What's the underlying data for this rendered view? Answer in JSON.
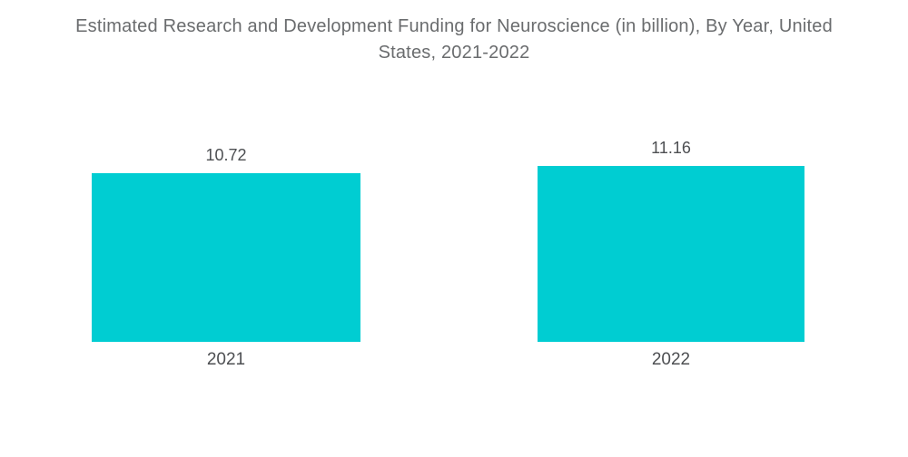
{
  "header": {
    "line1": "Estimated Research and Development Funding for Neuroscience (in billion), By Year, United",
    "line2": "States, 2021-2022"
  },
  "colors": {
    "bar": "#00CDD2",
    "title_text": "#6A6C6E",
    "label_text": "#4D4F52",
    "background": "#FFFFFF"
  },
  "chart_data": {
    "type": "bar",
    "title": "Estimated Research and Development Funding for Neuroscience (in billion), By Year, United States, 2021-2022",
    "categories": [
      "2021",
      "2022"
    ],
    "values": [
      10.72,
      11.16
    ],
    "value_labels": [
      "10.72",
      "11.16"
    ],
    "xlabel": "",
    "ylabel": "",
    "ylim": [
      0,
      11.16
    ],
    "grid": false,
    "legend": false,
    "bar_color": "#00CDD2",
    "layout": "two vertical bars, value labels above bars, category labels below, no axes drawn"
  }
}
